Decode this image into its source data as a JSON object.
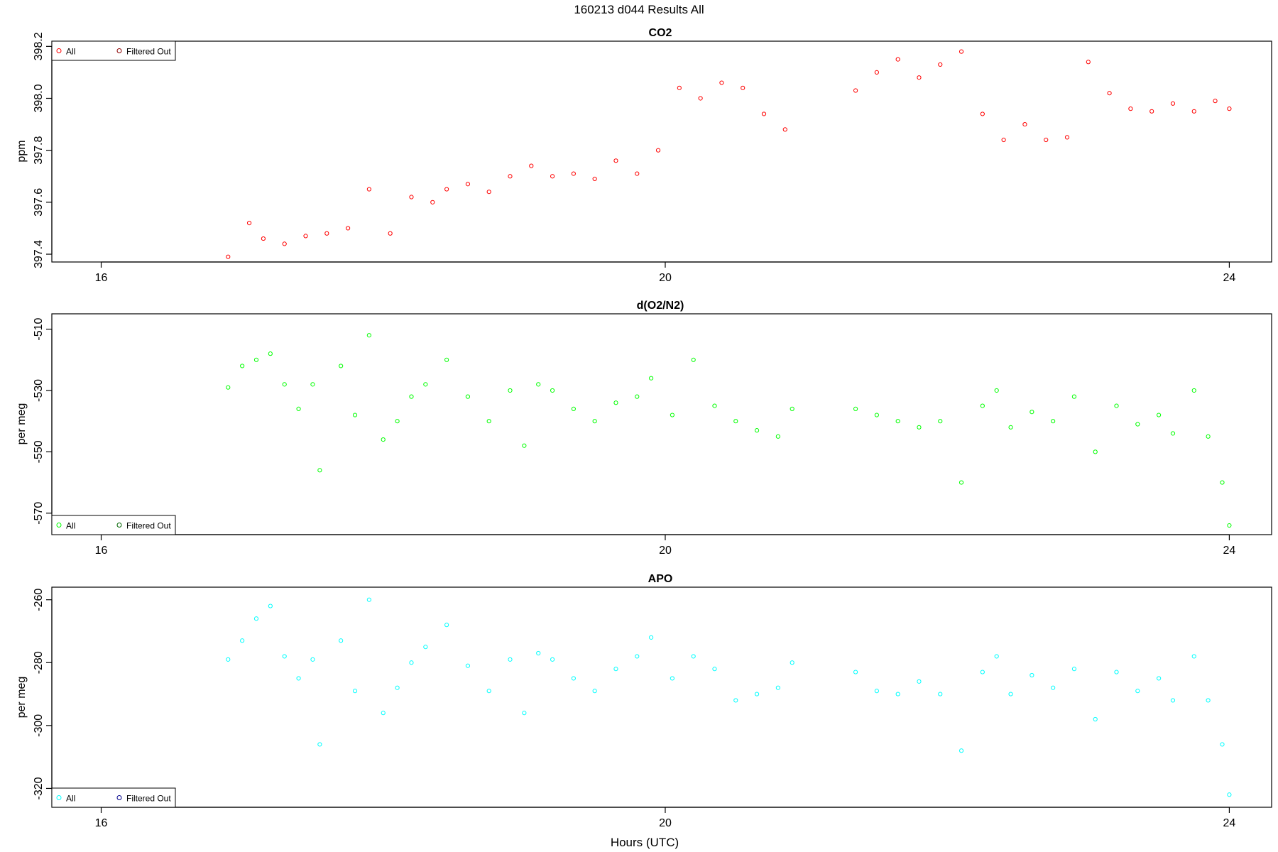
{
  "figure": {
    "title": "160213   d044   Results All",
    "xlabel": "Hours (UTC)"
  },
  "legend": {
    "all_label": "All",
    "filtered_label": "Filtered Out"
  },
  "chart_data": [
    {
      "type": "scatter",
      "title": "CO2",
      "ylabel": "ppm",
      "xlim": [
        15.65,
        24.3
      ],
      "ylim": [
        397.37,
        398.22
      ],
      "xticks": [
        16,
        20,
        24
      ],
      "yticks": [
        397.4,
        397.6,
        397.8,
        398.0,
        398.2
      ],
      "ytick_labels": [
        "397.4",
        "397.6",
        "397.8",
        "398.0",
        "398.2"
      ],
      "legend_position": "top-left",
      "series": [
        {
          "name": "All",
          "color": "#ff0000",
          "marker": "circle-open",
          "x": [
            16.9,
            17.05,
            17.15,
            17.3,
            17.45,
            17.6,
            17.75,
            17.9,
            18.05,
            18.2,
            18.35,
            18.45,
            18.6,
            18.75,
            18.9,
            19.05,
            19.2,
            19.35,
            19.5,
            19.65,
            19.8,
            19.95,
            20.1,
            20.25,
            20.4,
            20.55,
            20.7,
            20.85,
            21.35,
            21.5,
            21.65,
            21.8,
            21.95,
            22.1,
            22.25,
            22.4,
            22.55,
            22.7,
            22.85,
            23.0,
            23.15,
            23.3,
            23.45,
            23.6,
            23.75,
            23.9,
            24.0
          ],
          "y": [
            397.39,
            397.52,
            397.46,
            397.44,
            397.47,
            397.48,
            397.5,
            397.65,
            397.48,
            397.62,
            397.6,
            397.65,
            397.67,
            397.64,
            397.7,
            397.74,
            397.7,
            397.71,
            397.69,
            397.76,
            397.71,
            397.8,
            398.04,
            398.0,
            398.06,
            398.04,
            397.94,
            397.88,
            398.03,
            398.1,
            398.15,
            398.08,
            398.13,
            398.18,
            397.94,
            397.84,
            397.9,
            397.84,
            397.85,
            398.14,
            398.02,
            397.96,
            397.95,
            397.98,
            397.95,
            397.99,
            397.96
          ]
        },
        {
          "name": "Filtered Out",
          "color": "#8b0000",
          "marker": "circle-open",
          "x": [],
          "y": []
        }
      ]
    },
    {
      "type": "scatter",
      "title": "d(O2/N2)",
      "ylabel": "per meg",
      "xlim": [
        15.65,
        24.3
      ],
      "ylim": [
        -577,
        -505
      ],
      "xticks": [
        16,
        20,
        24
      ],
      "yticks": [
        -570,
        -550,
        -530,
        -510
      ],
      "ytick_labels": [
        "-570",
        "-550",
        "-530",
        "-510"
      ],
      "legend_position": "bottom-left",
      "series": [
        {
          "name": "All",
          "color": "#00ff00",
          "marker": "circle-open",
          "x": [
            16.9,
            17.0,
            17.1,
            17.2,
            17.3,
            17.4,
            17.5,
            17.55,
            17.7,
            17.8,
            17.9,
            18.0,
            18.1,
            18.2,
            18.3,
            18.45,
            18.6,
            18.75,
            18.9,
            19.0,
            19.1,
            19.2,
            19.35,
            19.5,
            19.65,
            19.8,
            19.9,
            20.05,
            20.2,
            20.35,
            20.5,
            20.65,
            20.8,
            20.9,
            21.35,
            21.5,
            21.65,
            21.8,
            21.95,
            22.1,
            22.25,
            22.35,
            22.45,
            22.6,
            22.75,
            22.9,
            23.05,
            23.2,
            23.35,
            23.5,
            23.6,
            23.75,
            23.85,
            23.95,
            24.0
          ],
          "y": [
            -529,
            -522,
            -520,
            -518,
            -528,
            -536,
            -528,
            -556,
            -522,
            -538,
            -512,
            -546,
            -540,
            -532,
            -528,
            -520,
            -532,
            -540,
            -530,
            -548,
            -528,
            -530,
            -536,
            -540,
            -534,
            -532,
            -526,
            -538,
            -520,
            -535,
            -540,
            -543,
            -545,
            -536,
            -536,
            -538,
            -540,
            -542,
            -540,
            -560,
            -535,
            -530,
            -542,
            -537,
            -540,
            -532,
            -550,
            -535,
            -541,
            -538,
            -544,
            -530,
            -545,
            -560,
            -574
          ]
        },
        {
          "name": "Filtered Out",
          "color": "#006400",
          "marker": "circle-open",
          "x": [],
          "y": []
        }
      ]
    },
    {
      "type": "scatter",
      "title": "APO",
      "ylabel": "per meg",
      "xlim": [
        15.65,
        24.3
      ],
      "ylim": [
        -326,
        -256
      ],
      "xticks": [
        16,
        20,
        24
      ],
      "yticks": [
        -320,
        -300,
        -280,
        -260
      ],
      "ytick_labels": [
        "-320",
        "-300",
        "-280",
        "-260"
      ],
      "legend_position": "bottom-left",
      "series": [
        {
          "name": "All",
          "color": "#00ffff",
          "marker": "circle-open",
          "x": [
            16.9,
            17.0,
            17.1,
            17.2,
            17.3,
            17.4,
            17.5,
            17.55,
            17.7,
            17.8,
            17.9,
            18.0,
            18.1,
            18.2,
            18.3,
            18.45,
            18.6,
            18.75,
            18.9,
            19.0,
            19.1,
            19.2,
            19.35,
            19.5,
            19.65,
            19.8,
            19.9,
            20.05,
            20.2,
            20.35,
            20.5,
            20.65,
            20.8,
            20.9,
            21.35,
            21.5,
            21.65,
            21.8,
            21.95,
            22.1,
            22.25,
            22.35,
            22.45,
            22.6,
            22.75,
            22.9,
            23.05,
            23.2,
            23.35,
            23.5,
            23.6,
            23.75,
            23.85,
            23.95,
            24.0
          ],
          "y": [
            -279,
            -273,
            -266,
            -262,
            -278,
            -285,
            -279,
            -306,
            -273,
            -289,
            -260,
            -296,
            -288,
            -280,
            -275,
            -268,
            -281,
            -289,
            -279,
            -296,
            -277,
            -279,
            -285,
            -289,
            -282,
            -278,
            -272,
            -285,
            -278,
            -282,
            -292,
            -290,
            -288,
            -280,
            -283,
            -289,
            -290,
            -286,
            -290,
            -308,
            -283,
            -278,
            -290,
            -284,
            -288,
            -282,
            -298,
            -283,
            -289,
            -285,
            -292,
            -278,
            -292,
            -306,
            -322
          ]
        },
        {
          "name": "Filtered Out",
          "color": "#00008b",
          "marker": "circle-open",
          "x": [],
          "y": []
        }
      ]
    }
  ]
}
